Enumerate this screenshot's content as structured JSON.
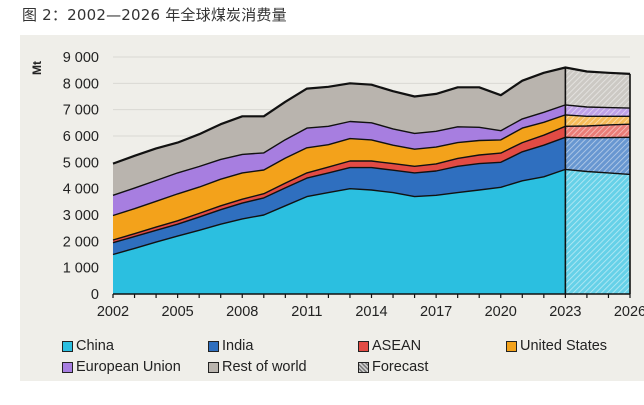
{
  "figure": {
    "title": "图 2：2002—2026 年全球煤炭消费量"
  },
  "colors": {
    "China": "#2bbfe0",
    "India": "#2f6fbf",
    "ASEAN": "#e24b44",
    "United States": "#f3a21b",
    "European Union": "#a77ee0",
    "Rest of world": "#b9b4ae",
    "grid": "#d9d8d3",
    "outline": "#111111"
  },
  "chart_data": {
    "type": "area",
    "stacked": true,
    "title": "",
    "xlabel": "",
    "ylabel": "Mt",
    "ylim": [
      0,
      9000
    ],
    "xlim": [
      2002,
      2026
    ],
    "yticks": [
      0,
      1000,
      2000,
      3000,
      4000,
      5000,
      6000,
      7000,
      8000,
      9000
    ],
    "ytick_labels": [
      "0",
      "1 000",
      "2 000",
      "3 000",
      "4 000",
      "5 000",
      "6 000",
      "7 000",
      "8 000",
      "9 000"
    ],
    "xticks": [
      2002,
      2005,
      2008,
      2011,
      2014,
      2017,
      2020,
      2023,
      2026
    ],
    "xtick_labels": [
      "2002",
      "2005",
      "2008",
      "2011",
      "2014",
      "2017",
      "2020",
      "2023",
      "2026"
    ],
    "grid": "horizontal",
    "forecast_start": 2023,
    "forecast_label": "Forecast",
    "x": [
      2002,
      2003,
      2004,
      2005,
      2006,
      2007,
      2008,
      2009,
      2010,
      2011,
      2012,
      2013,
      2014,
      2015,
      2016,
      2017,
      2018,
      2019,
      2020,
      2021,
      2022,
      2023,
      2024,
      2025,
      2026
    ],
    "series": [
      {
        "name": "China",
        "values": [
          1500,
          1730,
          1970,
          2200,
          2420,
          2650,
          2850,
          3000,
          3350,
          3700,
          3850,
          4000,
          3950,
          3850,
          3700,
          3750,
          3850,
          3950,
          4050,
          4300,
          4450,
          4730,
          4650,
          4600,
          4540
        ]
      },
      {
        "name": "India",
        "values": [
          450,
          450,
          450,
          450,
          500,
          550,
          600,
          650,
          680,
          700,
          750,
          800,
          850,
          850,
          900,
          920,
          1000,
          1000,
          950,
          1100,
          1200,
          1220,
          1280,
          1340,
          1410
        ]
      },
      {
        "name": "ASEAN",
        "values": [
          100,
          110,
          120,
          130,
          140,
          150,
          150,
          160,
          180,
          200,
          220,
          250,
          250,
          250,
          250,
          270,
          300,
          330,
          350,
          350,
          380,
          420,
          450,
          480,
          500
        ]
      },
      {
        "name": "United States",
        "values": [
          930,
          950,
          980,
          1020,
          1000,
          1010,
          1000,
          900,
          950,
          950,
          850,
          850,
          800,
          700,
          650,
          640,
          600,
          550,
          500,
          550,
          490,
          430,
          370,
          330,
          300
        ]
      },
      {
        "name": "European Union",
        "values": [
          770,
          780,
          790,
          800,
          780,
          750,
          700,
          650,
          700,
          750,
          700,
          650,
          650,
          620,
          600,
          600,
          600,
          500,
          350,
          350,
          380,
          380,
          350,
          330,
          310
        ]
      },
      {
        "name": "Rest of world",
        "values": [
          1200,
          1230,
          1220,
          1150,
          1230,
          1340,
          1450,
          1390,
          1440,
          1500,
          1500,
          1450,
          1450,
          1430,
          1400,
          1420,
          1500,
          1520,
          1350,
          1450,
          1500,
          1420,
          1350,
          1320,
          1300
        ]
      }
    ],
    "legend": {
      "position": "bottom",
      "entries": [
        "China",
        "India",
        "ASEAN",
        "United States",
        "European Union",
        "Rest of world",
        "Forecast"
      ]
    }
  }
}
